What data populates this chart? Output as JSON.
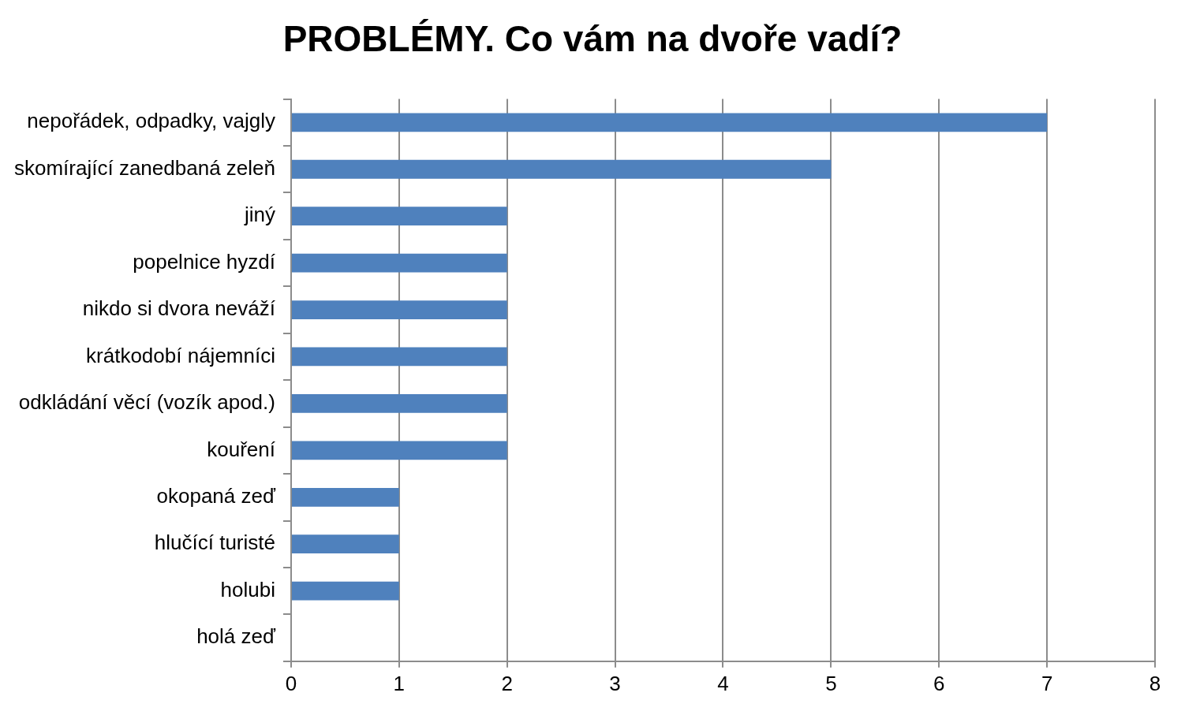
{
  "chart_data": {
    "type": "bar",
    "orientation": "horizontal",
    "title": "PROBLÉMY. Co vám na dvoře vadí?",
    "categories": [
      "nepořádek, odpadky, vajgly",
      "skomírající zanedbaná zeleň",
      "jiný",
      "popelnice hyzdí",
      "nikdo si dvora neváží",
      "krátkodobí nájemníci",
      "odkládání věcí (vozík apod.)",
      "kouření",
      "okopaná zeď",
      "hlučící turisté",
      "holubi",
      "holá zeď"
    ],
    "values": [
      7,
      5,
      2,
      2,
      2,
      2,
      2,
      2,
      1,
      1,
      1,
      0
    ],
    "color": "#4f81bd",
    "xlim": [
      0,
      8
    ],
    "xticks": [
      0,
      1,
      2,
      3,
      4,
      5,
      6,
      7,
      8
    ],
    "grid": "x",
    "legend": false
  }
}
